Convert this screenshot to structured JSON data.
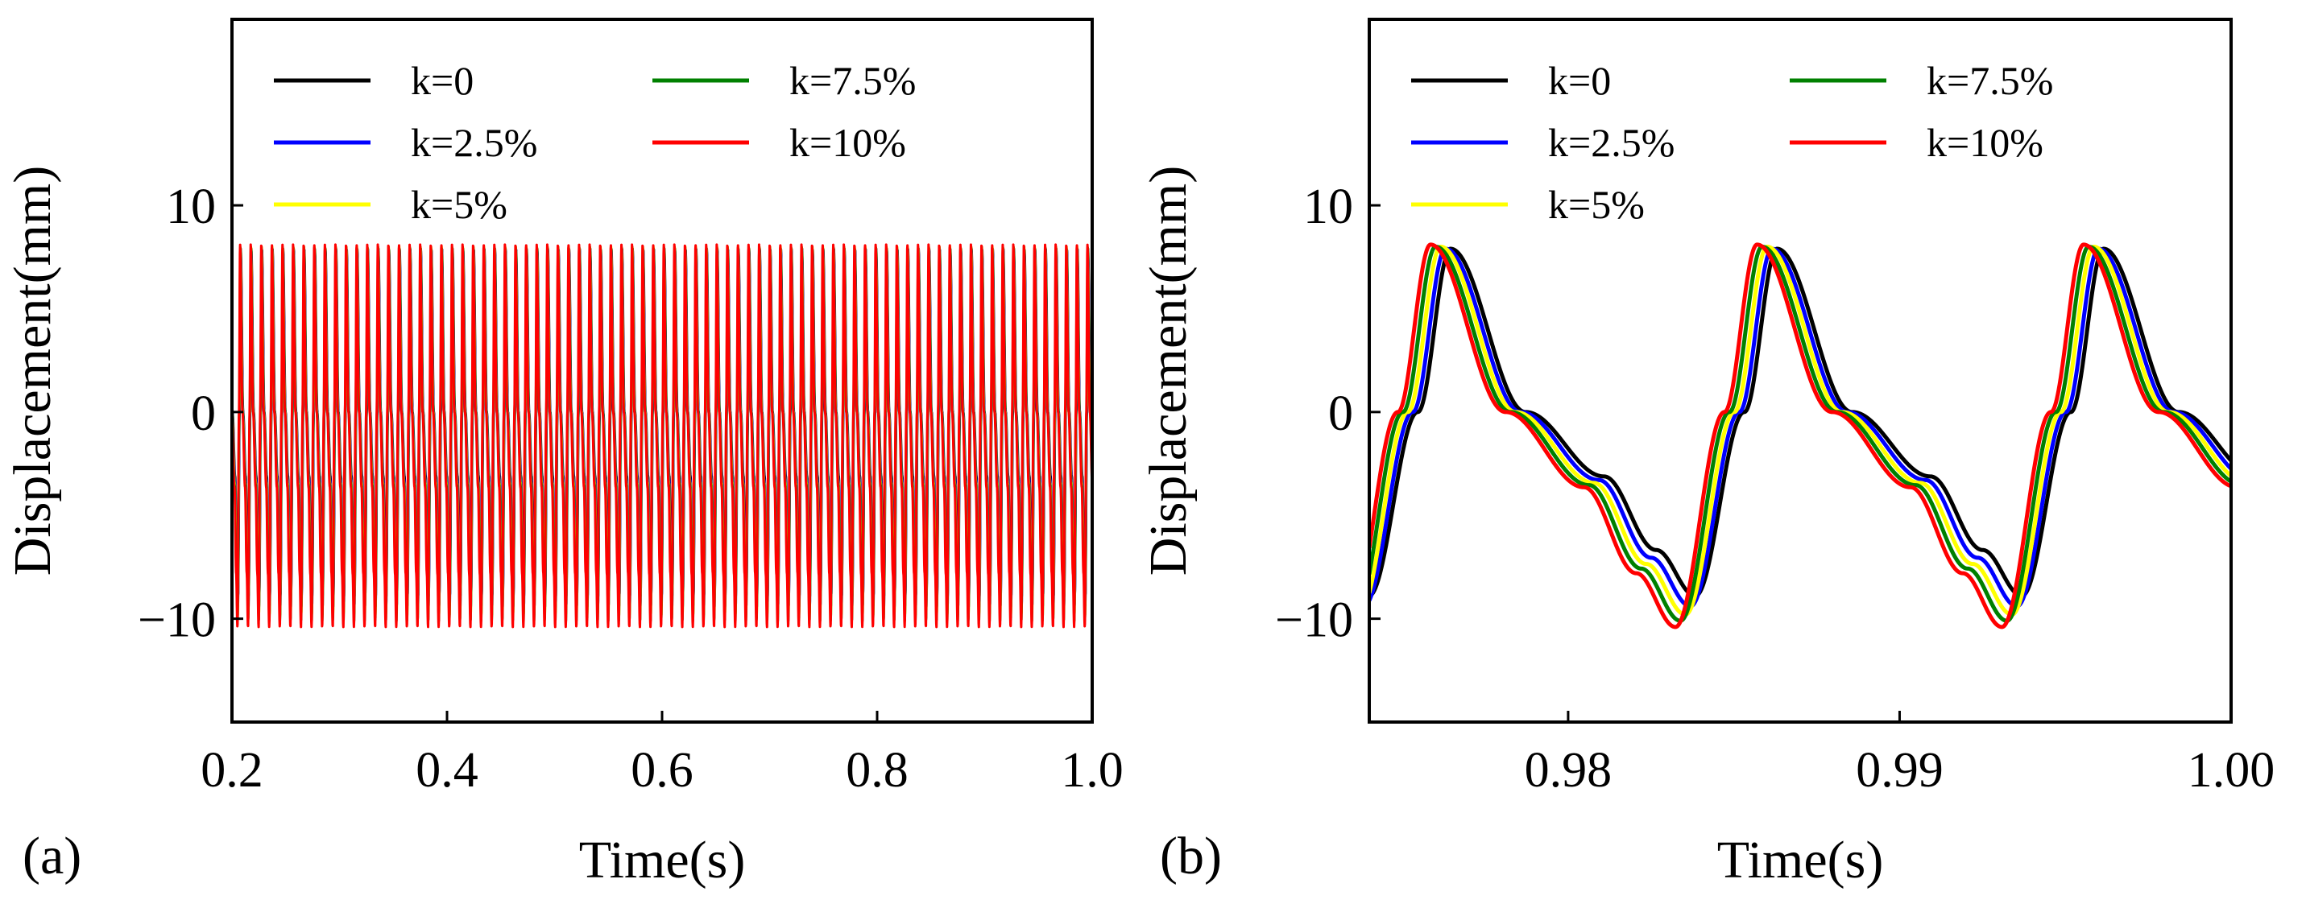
{
  "figure": {
    "panels": [
      {
        "label": "(a)"
      },
      {
        "label": "(b)"
      }
    ]
  },
  "chart_data": [
    {
      "type": "line",
      "panel": "(a)",
      "title": "",
      "xlabel": "Time(s)",
      "ylabel": "Displacement(mm)",
      "xlim": [
        0.2,
        1.0
      ],
      "ylim": [
        -15,
        19
      ],
      "xticks": [
        0.2,
        0.4,
        0.6,
        0.8,
        1.0
      ],
      "xtick_labels": [
        "0.2",
        "0.4",
        "0.6",
        "0.8",
        "1.0"
      ],
      "yticks": [
        -10,
        0,
        10
      ],
      "ytick_labels": [
        "−10",
        "0",
        "10"
      ],
      "grid": false,
      "legend": {
        "placement": "top-left",
        "columns": 2
      },
      "signal": {
        "period_s": 0.00985,
        "peak_mm": 8.1,
        "trough_mm": -10.4,
        "peak_time_s": 0.9857
      },
      "series": [
        {
          "name": "k=0",
          "color": "#000000",
          "max": 7.9,
          "min": -8.9,
          "phase_lag_s": 0.0006
        },
        {
          "name": "k=2.5%",
          "color": "#0000ff",
          "max": 7.9,
          "min": -9.4,
          "phase_lag_s": 0.00045
        },
        {
          "name": "k=5%",
          "color": "#ffff00",
          "max": 8.0,
          "min": -9.8,
          "phase_lag_s": 0.0003
        },
        {
          "name": "k=7.5%",
          "color": "#008000",
          "max": 8.0,
          "min": -10.1,
          "phase_lag_s": 0.00015
        },
        {
          "name": "k=10%",
          "color": "#ff0000",
          "max": 8.1,
          "min": -10.4,
          "phase_lag_s": 0.0
        }
      ]
    },
    {
      "type": "line",
      "panel": "(b)",
      "title": "",
      "xlabel": "Time(s)",
      "ylabel": "Displacement(mm)",
      "xlim": [
        0.974,
        1.0
      ],
      "ylim": [
        -15,
        19
      ],
      "xticks": [
        0.98,
        0.99,
        1.0
      ],
      "xtick_labels": [
        "0.98",
        "0.99",
        "1.00"
      ],
      "yticks": [
        -10,
        0,
        10
      ],
      "ytick_labels": [
        "−10",
        "0",
        "10"
      ],
      "grid": false,
      "legend": {
        "placement": "top-left",
        "columns": 2
      },
      "signal": {
        "period_s": 0.00985,
        "peak_mm": 8.1,
        "trough_mm": -10.4,
        "peak_time_s": 0.9857
      },
      "series": [
        {
          "name": "k=0",
          "color": "#000000",
          "max": 7.9,
          "min": -8.9,
          "phase_lag_s": 0.0006
        },
        {
          "name": "k=2.5%",
          "color": "#0000ff",
          "max": 7.9,
          "min": -9.4,
          "phase_lag_s": 0.00045
        },
        {
          "name": "k=5%",
          "color": "#ffff00",
          "max": 8.0,
          "min": -9.8,
          "phase_lag_s": 0.0003
        },
        {
          "name": "k=7.5%",
          "color": "#008000",
          "max": 8.0,
          "min": -10.1,
          "phase_lag_s": 0.00015
        },
        {
          "name": "k=10%",
          "color": "#ff0000",
          "max": 8.1,
          "min": -10.4,
          "phase_lag_s": 0.0
        }
      ]
    }
  ]
}
